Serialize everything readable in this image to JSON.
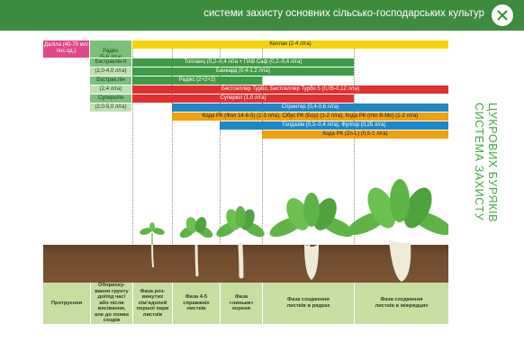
{
  "header": {
    "title": "системи захисту основних сільсько-господарських культур",
    "brand_color": "#3d8b3c"
  },
  "side_title": {
    "line1": "СИСТЕМА ЗАХИСТУ",
    "line2": "ЦУКРОВИХ БУРЯКІВ"
  },
  "left_products": {
    "dalila": "Даліла (40-70 мл/пос.од.)",
    "radiks": "Радікс\n(5-6 л/га)",
    "ekstraklin_k": "Екстраклін К",
    "ekstraklin_k_rate": "(2,0-4,0 л/га)",
    "ekstraklin": "Екстрак.лін",
    "ekstraklin_rate": "(2,4 л/га)",
    "superklin": "Суперклін",
    "superklin_rate": "(2,0-5,0 л/га)"
  },
  "bars": [
    {
      "label": "Келлак (2-4 л/га)",
      "color": "#f5d300"
    },
    {
      "label": "Топланц (0,2–0,4 л/га + ПАВ Саф (0,2–0,4 л/га)",
      "color": "#3f9b45"
    },
    {
      "label": "Банкард (0,4-1,2 л/га)",
      "color": "#3f9b45"
    },
    {
      "label": "Радікс (2+2+2)",
      "color": "#3f9b45"
    },
    {
      "label": "Бестселлер Турбо, Бестселлер Турбо 5 (0,05-0,12 л/га)",
      "color": "#e03030"
    },
    {
      "label": "Суперкіл (1,0 л/га)",
      "color": "#e03030"
    },
    {
      "label": "Спринтер (0,4-0,6 л/га)",
      "color": "#1f86c8"
    },
    {
      "label": "Кода РК (Фол 14-6-5) (1-3 л/га), Сібус РК (Бор) (1-2 л/га), Кода РК (min B-Mo) (1-2 л/га)",
      "color": "#f2a007"
    },
    {
      "label": "Голдазім (0,3–0,4 л/га), Фулгор (0,25 л/га)",
      "color": "#1f86c8"
    },
    {
      "label": "Кода РК (Zn-L) (0,5-1 л/га)",
      "color": "#f2a007"
    }
  ],
  "stages": [
    "Протруєння",
    "Обприску-\nвання грунту\nдо/під час/\nабо після\nвисівання,\nале до появи\nсходів",
    "Фаза роз-\nвинутих\nсім’ядолей\nпершої пари\nлистків",
    "Фаза 4-5\nсправжніх\nлистків",
    "Фаза\n«линьки»\nкореня",
    "Фаза сходження\nлистків в рядках",
    "Фаза сходження\nлистків в міжрядцях"
  ],
  "colors": {
    "pink": "#e0488a",
    "green_cell": "#7cc07a",
    "light_green_cell": "#bfe0b0",
    "soil": "#6f4a2c",
    "stage_bg": "#c7dda2",
    "leaf": "#5fb446",
    "root": "#efe9d8"
  }
}
